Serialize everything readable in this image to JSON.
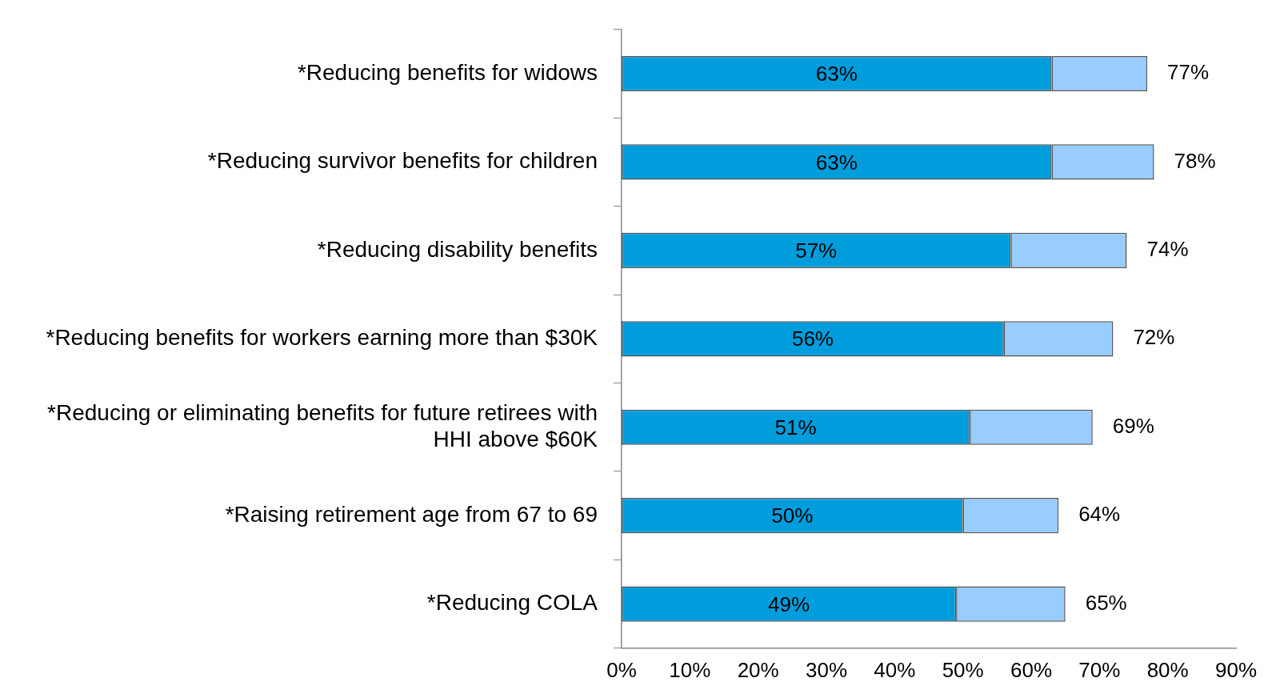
{
  "chart_data": {
    "type": "bar",
    "orientation": "horizontal",
    "stacked": true,
    "categories": [
      "*Reducing benefits for widows",
      "*Reducing survivor benefits for children",
      "*Reducing disability benefits",
      "*Reducing benefits for workers earning more than $30K",
      "*Reducing or eliminating benefits for future retirees with HHI above $60K",
      "*Raising retirement age from 67 to 69",
      "*Reducing COLA"
    ],
    "series": [
      {
        "color": "#009ddd",
        "values": [
          63,
          63,
          57,
          56,
          51,
          50,
          49
        ],
        "value_labels": [
          "63%",
          "63%",
          "57%",
          "56%",
          "51%",
          "50%",
          "49%"
        ]
      },
      {
        "color": "#99ccff",
        "values": [
          14,
          15,
          17,
          16,
          18,
          14,
          16
        ]
      }
    ],
    "totals": [
      "77%",
      "78%",
      "74%",
      "72%",
      "69%",
      "64%",
      "65%"
    ],
    "xlim": [
      0,
      90
    ],
    "xticks": [
      {
        "value": 0,
        "label": "0%"
      },
      {
        "value": 10,
        "label": "10%"
      },
      {
        "value": 20,
        "label": "20%"
      },
      {
        "value": 30,
        "label": "30%"
      },
      {
        "value": 40,
        "label": "40%"
      },
      {
        "value": 50,
        "label": "50%"
      },
      {
        "value": 60,
        "label": "60%"
      },
      {
        "value": 70,
        "label": "70%"
      },
      {
        "value": 80,
        "label": "80%"
      },
      {
        "value": 90,
        "label": "90%"
      }
    ],
    "grid": false,
    "legend": false
  }
}
